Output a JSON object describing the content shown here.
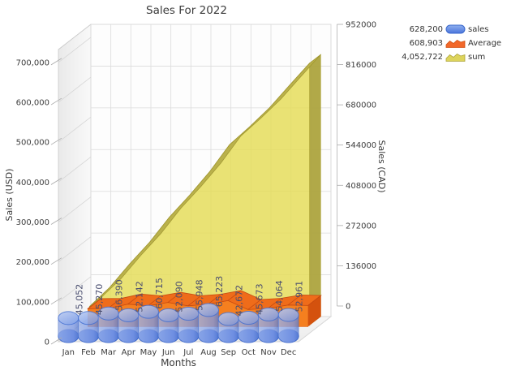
{
  "title": "Sales For 2022",
  "chart_data": {
    "type": "mixed-3d",
    "title": "Sales For 2022",
    "categories": [
      "Jan",
      "Feb",
      "Mar",
      "Apr",
      "May",
      "Jun",
      "Jul",
      "Aug",
      "Sep",
      "Oct",
      "Nov",
      "Dec"
    ],
    "xlabel": "Months",
    "axes": {
      "left": {
        "label": "Sales (USD)",
        "ticks": [
          {
            "v": 0,
            "t": "0"
          },
          {
            "v": 100000,
            "t": "100,000"
          },
          {
            "v": 200000,
            "t": "200,000"
          },
          {
            "v": 300000,
            "t": "300,000"
          },
          {
            "v": 400000,
            "t": "400,000"
          },
          {
            "v": 500000,
            "t": "500,000"
          },
          {
            "v": 600000,
            "t": "600,000"
          },
          {
            "v": 700000,
            "t": "700,000"
          }
        ]
      },
      "right": {
        "label": "Sales (CAD)",
        "ticks": [
          {
            "v": 0,
            "t": "0"
          },
          {
            "v": 136000,
            "t": "136000"
          },
          {
            "v": 272000,
            "t": "272000"
          },
          {
            "v": 408000,
            "t": "408000"
          },
          {
            "v": 544000,
            "t": "544000"
          },
          {
            "v": 680000,
            "t": "680000"
          },
          {
            "v": 816000,
            "t": "816000"
          },
          {
            "v": 952000,
            "t": "952000"
          }
        ],
        "max": 952000
      }
    },
    "series": [
      {
        "name": "sales",
        "type": "cylinder",
        "color": "#4a74dc",
        "values": [
          45052,
          45270,
          56390,
          52142,
          60715,
          52090,
          55948,
          65223,
          42672,
          45673,
          54064,
          52961
        ],
        "point_labels": [
          "45,052",
          "45,270",
          "56,390",
          "52,142",
          "60,715",
          "52,090",
          "55,948",
          "65,223",
          "42,672",
          "45,673",
          "54,064",
          "52,961"
        ],
        "legend_value": "628,200"
      },
      {
        "name": "Average",
        "type": "area3d",
        "color": "#f2682a",
        "legend_value": "608,903"
      },
      {
        "name": "sum",
        "type": "area3d-cumulative",
        "color": "#ddd45c",
        "legend_value": "4,052,722"
      }
    ]
  },
  "legend": {
    "items": [
      {
        "value": "628,200",
        "label": "sales",
        "icon": "pill-blue"
      },
      {
        "value": "608,903",
        "label": "Average",
        "icon": "area-orange"
      },
      {
        "value": "4,052,722",
        "label": "sum",
        "icon": "area-yellow"
      }
    ]
  }
}
